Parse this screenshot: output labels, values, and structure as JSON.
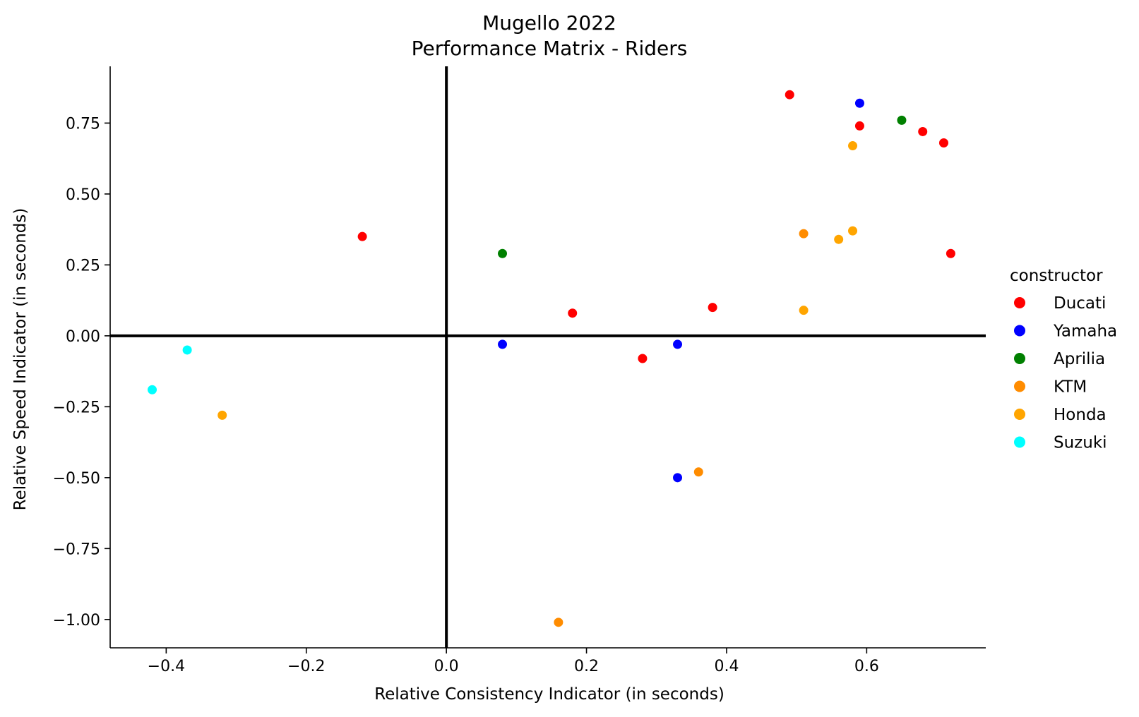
{
  "chart_data": {
    "type": "scatter",
    "title": "Mugello 2022",
    "subtitle": "Performance Matrix - Riders",
    "xlabel": "Relative Consistency Indicator (in seconds)",
    "ylabel": "Relative Speed Indicator (in seconds)",
    "xlim": [
      -0.48,
      0.77
    ],
    "ylim": [
      -1.1,
      0.95
    ],
    "xticks": [
      -0.4,
      -0.2,
      0.0,
      0.2,
      0.4,
      0.6
    ],
    "xtick_labels": [
      "−0.4",
      "−0.2",
      "0.0",
      "0.2",
      "0.4",
      "0.6"
    ],
    "yticks": [
      0.75,
      0.5,
      0.25,
      0.0,
      -0.25,
      -0.5,
      -0.75,
      -1.0
    ],
    "ytick_labels": [
      "0.75",
      "0.50",
      "0.25",
      "0.00",
      "−0.25",
      "−0.50",
      "−0.75",
      "−1.00"
    ],
    "reference_lines": {
      "x": 0,
      "y": 0
    },
    "grid": false,
    "legend_title": "constructor",
    "legend_position": "right",
    "series": [
      {
        "name": "Ducati",
        "color": "#ff0000",
        "points": [
          [
            0.49,
            0.85
          ],
          [
            0.59,
            0.74
          ],
          [
            0.68,
            0.72
          ],
          [
            0.71,
            0.68
          ],
          [
            0.72,
            0.29
          ],
          [
            -0.12,
            0.35
          ],
          [
            0.18,
            0.08
          ],
          [
            0.38,
            0.1
          ],
          [
            0.28,
            -0.08
          ]
        ]
      },
      {
        "name": "Yamaha",
        "color": "#0000ff",
        "points": [
          [
            0.59,
            0.82
          ],
          [
            0.08,
            -0.03
          ],
          [
            0.33,
            -0.03
          ],
          [
            0.33,
            -0.5
          ]
        ]
      },
      {
        "name": "Aprilia",
        "color": "#008000",
        "points": [
          [
            0.65,
            0.76
          ],
          [
            0.08,
            0.29
          ]
        ]
      },
      {
        "name": "KTM",
        "color": "#ff8c00",
        "points": [
          [
            0.51,
            0.36
          ],
          [
            0.36,
            -0.48
          ],
          [
            0.16,
            -1.01
          ]
        ]
      },
      {
        "name": "Honda",
        "color": "#ffa500",
        "points": [
          [
            0.58,
            0.67
          ],
          [
            0.56,
            0.34
          ],
          [
            0.58,
            0.37
          ],
          [
            0.51,
            0.09
          ],
          [
            -0.32,
            -0.28
          ]
        ]
      },
      {
        "name": "Suzuki",
        "color": "#00ffff",
        "points": [
          [
            -0.37,
            -0.05
          ],
          [
            -0.42,
            -0.19
          ]
        ]
      }
    ]
  }
}
